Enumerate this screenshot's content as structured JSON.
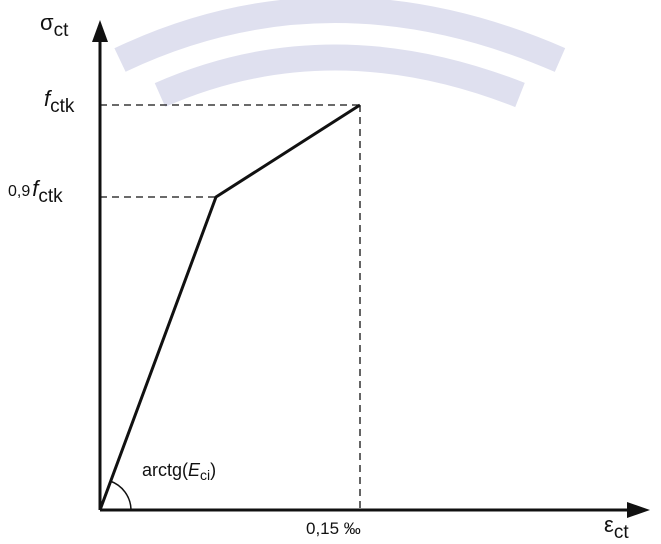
{
  "axes": {
    "y_label_main": "σ",
    "y_label_sub": "ct",
    "x_label_main": "ε",
    "x_label_sub": "ct"
  },
  "y_ticks": {
    "fctk_f": "f",
    "fctk_sub": "ctk",
    "fctk09_prefix": "0,9",
    "fctk09_f": "f",
    "fctk09_sub": "ctk"
  },
  "x_ticks": {
    "strain_label": "0,15 ‰"
  },
  "annotation": {
    "prefix": "arctg(",
    "E": "E",
    "sub": "ci",
    "suffix": ")"
  },
  "colors": {
    "line": "#111111",
    "watermark": "#dfe0ef"
  }
}
